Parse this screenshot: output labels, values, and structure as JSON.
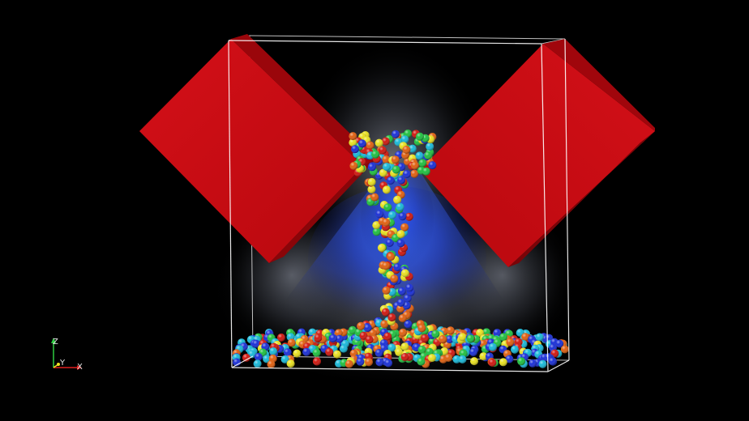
{
  "viewport": {
    "background": "#000000"
  },
  "scene": {
    "objects": [
      "bounding-box",
      "hopper-plate-left",
      "hopper-plate-right",
      "particles",
      "fluid-volume"
    ],
    "plate_color": "#c40a12",
    "box_edge_color": "#ffffff",
    "fluid_color": "#2a5cff",
    "particle_colormap": [
      "#1a2fd6",
      "#19b8d8",
      "#20c040",
      "#e8e020",
      "#e06010",
      "#d01810"
    ]
  },
  "orientation_axes": {
    "z_label": "Z",
    "y_label": "Y",
    "x_label": "X",
    "z_color": "#2ecc40",
    "y_color": "#f0e020",
    "x_color": "#e02020"
  }
}
